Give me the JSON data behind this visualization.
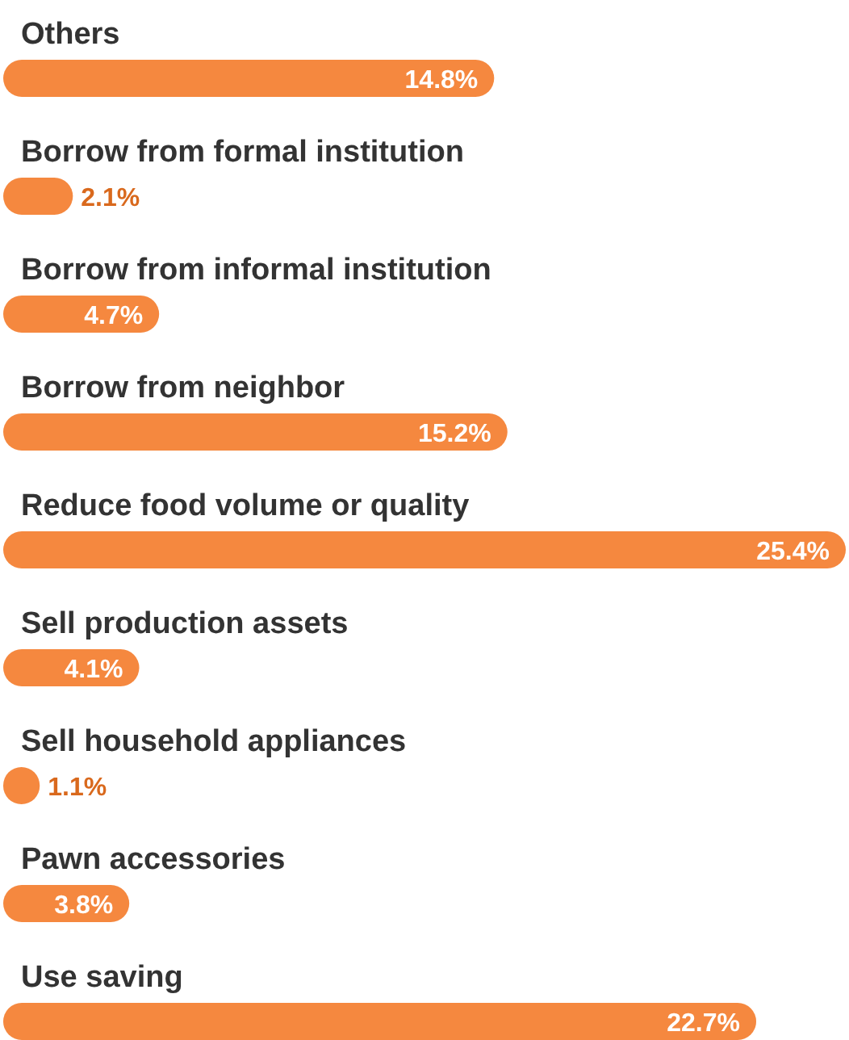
{
  "chart_data": {
    "type": "bar",
    "orientation": "horizontal",
    "categories": [
      "Others",
      "Borrow from formal institution",
      "Borrow from informal institution",
      "Borrow from neighbor",
      "Reduce food volume or quality",
      "Sell production assets",
      "Sell household appliances",
      "Pawn accessories",
      "Use saving"
    ],
    "values": [
      14.8,
      2.1,
      4.7,
      15.2,
      25.4,
      4.1,
      1.1,
      3.8,
      22.7
    ],
    "value_labels": [
      "14.8%",
      "2.1%",
      "4.7%",
      "15.2%",
      "25.4%",
      "4.1%",
      "1.1%",
      "3.8%",
      "22.7%"
    ],
    "color": "#f5883f"
  }
}
